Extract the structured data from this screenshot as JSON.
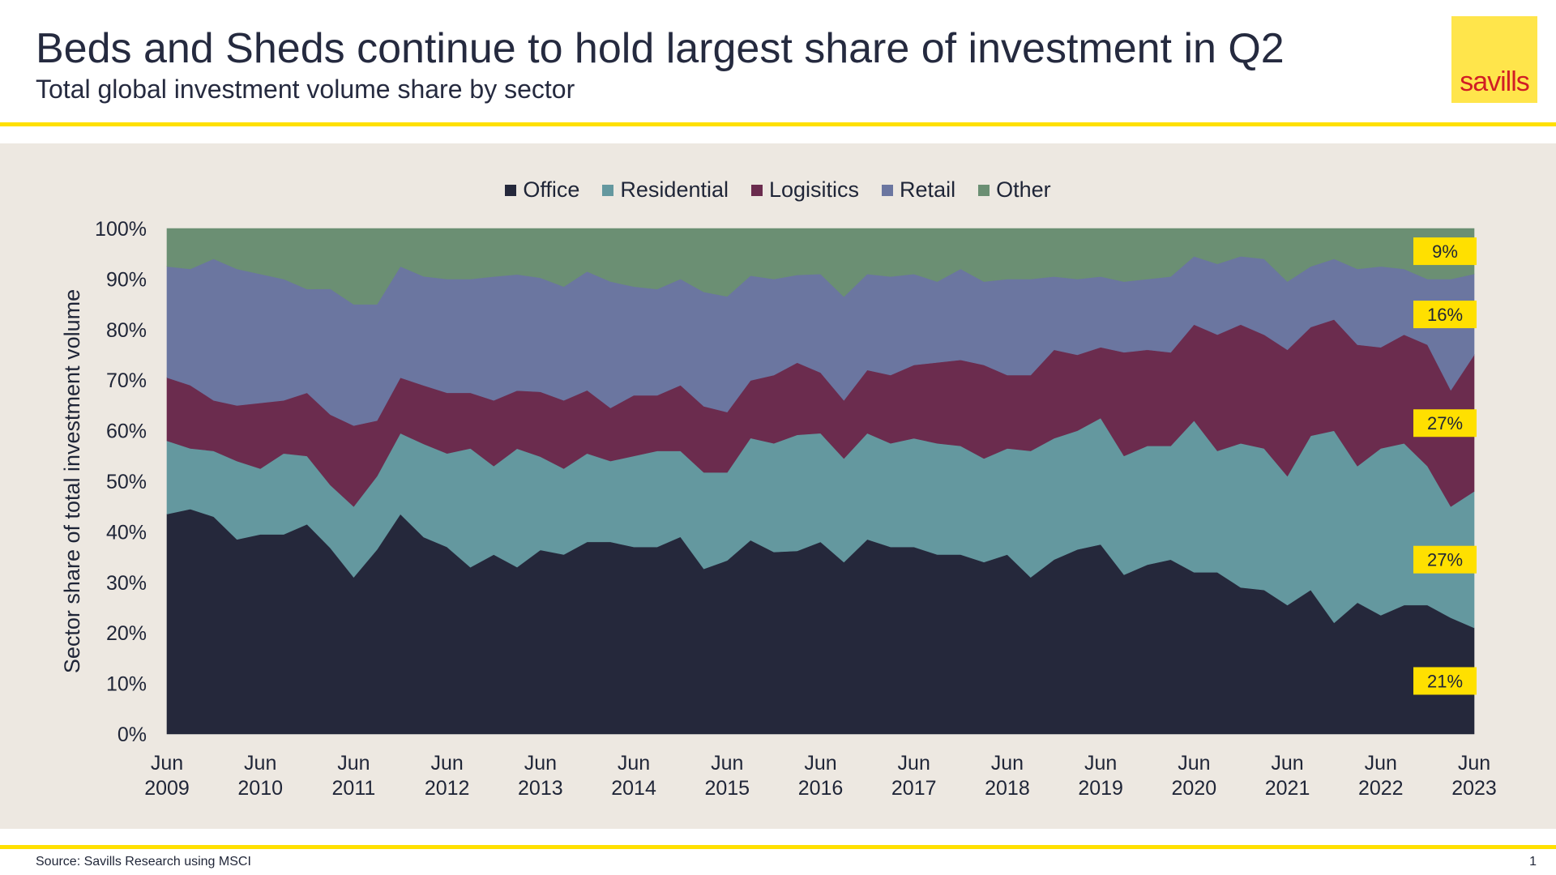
{
  "header": {
    "title": "Beds and Sheds continue to hold largest share of investment in Q2",
    "subtitle": "Total global investment volume share by sector",
    "logo_text": "savills"
  },
  "footer": {
    "source": "Source: Savills Research using MSCI",
    "page": "1"
  },
  "colors": {
    "Office": "#25283b",
    "Residential": "#64989f",
    "Logisitics": "#6b2c4e",
    "Retail": "#6b76a0",
    "Other": "#6b8f73",
    "accent": "#ffe000",
    "panel": "#ede8e1"
  },
  "chart_data": {
    "type": "area",
    "stacked": true,
    "ylabel": "Sector share of total investment volume",
    "ylim": [
      0,
      100
    ],
    "yticks": [
      "0%",
      "10%",
      "20%",
      "30%",
      "40%",
      "50%",
      "60%",
      "70%",
      "80%",
      "90%",
      "100%"
    ],
    "xticks": [
      {
        "line1": "Jun",
        "line2": "2009",
        "index": 0
      },
      {
        "line1": "Jun",
        "line2": "2010",
        "index": 4
      },
      {
        "line1": "Jun",
        "line2": "2011",
        "index": 8
      },
      {
        "line1": "Jun",
        "line2": "2012",
        "index": 12
      },
      {
        "line1": "Jun",
        "line2": "2013",
        "index": 16
      },
      {
        "line1": "Jun",
        "line2": "2014",
        "index": 20
      },
      {
        "line1": "Jun",
        "line2": "2015",
        "index": 24
      },
      {
        "line1": "Jun",
        "line2": "2016",
        "index": 28
      },
      {
        "line1": "Jun",
        "line2": "2017",
        "index": 32
      },
      {
        "line1": "Jun",
        "line2": "2018",
        "index": 36
      },
      {
        "line1": "Jun",
        "line2": "2019",
        "index": 40
      },
      {
        "line1": "Jun",
        "line2": "2020",
        "index": 44
      },
      {
        "line1": "Jun",
        "line2": "2021",
        "index": 48
      },
      {
        "line1": "Jun",
        "line2": "2022",
        "index": 52
      },
      {
        "line1": "Jun",
        "line2": "2023",
        "index": 56
      }
    ],
    "legend": [
      "Office",
      "Residential",
      "Logisitics",
      "Retail",
      "Other"
    ],
    "series": [
      {
        "name": "Office",
        "values": [
          43.5,
          44.5,
          43,
          38.5,
          39.5,
          39.5,
          41.5,
          37,
          31,
          36.5,
          43.5,
          37,
          37,
          33,
          35.5,
          34.5,
          35.5,
          35.5,
          38,
          38,
          37,
          37,
          39,
          32.5,
          34.5,
          37,
          36,
          35.5,
          38,
          34,
          38.5,
          37,
          37,
          35.5,
          35.5,
          34,
          35.5,
          31,
          34.5,
          36.5,
          37.5,
          31.5,
          33.5,
          34.5,
          32,
          32,
          29,
          28.5,
          25.5,
          28.5,
          22,
          26,
          23.5,
          25.5,
          25.5,
          23,
          21
        ]
      },
      {
        "name": "Residential",
        "values": [
          14.5,
          12,
          13,
          15.5,
          13,
          16,
          13.5,
          12.5,
          14,
          14.5,
          16,
          17.5,
          18.5,
          23.5,
          17.5,
          24.5,
          18,
          17,
          17.5,
          16,
          18,
          19,
          17,
          19,
          17.5,
          19.5,
          21.5,
          22.5,
          21.5,
          20.5,
          21,
          20.5,
          21.5,
          22,
          21.5,
          20.5,
          21,
          25,
          24,
          23.5,
          25,
          23.5,
          23.5,
          22.5,
          30,
          24,
          28.5,
          28,
          25.5,
          30.5,
          38,
          27,
          33,
          32,
          27.5,
          22,
          27
        ]
      },
      {
        "name": "Logisitics",
        "values": [
          12.5,
          12.5,
          10,
          11,
          13,
          10.5,
          12.5,
          14,
          16,
          11,
          11,
          11,
          12,
          11,
          13,
          12,
          12.5,
          13.5,
          12.5,
          10.5,
          12,
          11,
          13,
          13,
          12,
          11,
          13.5,
          14,
          12,
          11.5,
          12.5,
          13.5,
          14.5,
          16,
          17,
          18.5,
          14.5,
          15,
          17.5,
          15,
          14,
          20.5,
          19,
          18.5,
          19,
          23,
          23.5,
          22.5,
          25,
          21.5,
          22,
          24,
          20,
          21.5,
          24,
          23,
          27
        ]
      },
      {
        "name": "Retail",
        "values": [
          22,
          23,
          28,
          27,
          25.5,
          24,
          20.5,
          25,
          24,
          23,
          22,
          20.5,
          22.5,
          22.5,
          24.5,
          24,
          22,
          22.5,
          23.5,
          25,
          21.5,
          21,
          21,
          22.5,
          23,
          20,
          19,
          17,
          19.5,
          20.5,
          19,
          19.5,
          18,
          16,
          18,
          16.5,
          19,
          19,
          14.5,
          15,
          14,
          14,
          14,
          15,
          13.5,
          14,
          13.5,
          15,
          13.5,
          12,
          12,
          15,
          16,
          13,
          13,
          22,
          16
        ]
      },
      {
        "name": "Other",
        "values": [
          7.5,
          8,
          6,
          8,
          9,
          10,
          12,
          12,
          15,
          15,
          7.5,
          9,
          10,
          10,
          9.5,
          9.5,
          9.5,
          11.5,
          8.5,
          10.5,
          11.5,
          12,
          10,
          12.5,
          13.5,
          9,
          10,
          9,
          9,
          13.5,
          9,
          9.5,
          9,
          10.5,
          8,
          10.5,
          10,
          10,
          9.5,
          10,
          9.5,
          10.5,
          10,
          9.5,
          5.5,
          7,
          5.5,
          6,
          10.5,
          7.5,
          6,
          8,
          7.5,
          8,
          10,
          10,
          9
        ]
      }
    ],
    "end_labels": [
      {
        "series": "Other",
        "text": "9%"
      },
      {
        "series": "Retail",
        "text": "16%"
      },
      {
        "series": "Logisitics",
        "text": "27%"
      },
      {
        "series": "Residential",
        "text": "27%"
      },
      {
        "series": "Office",
        "text": "21%"
      }
    ]
  }
}
